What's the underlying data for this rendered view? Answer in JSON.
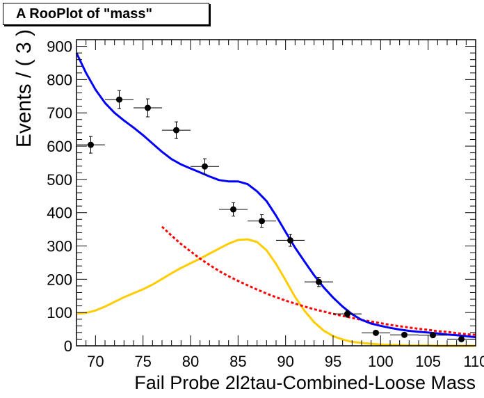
{
  "chart_data": {
    "type": "scatter",
    "title": "A RooPlot of \"mass\"",
    "xlabel": "Fail Probe 2l2tau-Combined-Loose    Mass",
    "ylabel": "Events / ( 3 )",
    "xlim": [
      68,
      110
    ],
    "ylim": [
      0,
      920
    ],
    "xticks": [
      70,
      75,
      80,
      85,
      90,
      95,
      100,
      105,
      110
    ],
    "yticks": [
      0,
      100,
      200,
      300,
      400,
      500,
      600,
      700,
      800,
      900
    ],
    "grid": false,
    "legend": "none",
    "colors": {
      "data": "#000000",
      "total_fit": "#0000ff",
      "signal": "#ffcc00",
      "background": "#ff0000"
    },
    "data_points": {
      "x": [
        69.5,
        72.5,
        75.5,
        78.5,
        81.5,
        84.5,
        87.5,
        90.5,
        93.5,
        96.5,
        99.5,
        102.5,
        105.5,
        108.5
      ],
      "y": [
        604,
        740,
        715,
        648,
        539,
        410,
        375,
        317,
        192,
        96,
        39,
        33,
        32,
        20
      ],
      "x_err": 1.5,
      "y_err": [
        25,
        27,
        27,
        25,
        23,
        20,
        19,
        18,
        14,
        10,
        6,
        6,
        6,
        4.5
      ]
    },
    "series": [
      {
        "style": "line",
        "x": [
          68,
          69,
          70,
          71,
          72,
          73,
          74,
          75,
          76,
          77,
          78,
          79,
          80,
          81,
          82,
          83,
          84,
          85,
          86,
          87,
          88,
          89,
          90,
          91,
          92,
          93,
          94,
          95,
          96,
          97,
          98,
          99,
          100,
          101,
          102,
          103,
          104,
          105,
          106,
          107,
          108,
          109,
          110
        ],
        "y": [
          880,
          820,
          770,
          730,
          700,
          677,
          656,
          633,
          608,
          583,
          561,
          545,
          533,
          521,
          509,
          498,
          494,
          494,
          486,
          464,
          435,
          391,
          342,
          295,
          253,
          212,
          176,
          145,
          118,
          95,
          78,
          67,
          60,
          54,
          49,
          45,
          42,
          40,
          37,
          34,
          32,
          29,
          26
        ]
      },
      {
        "style": "line",
        "x": [
          68,
          69,
          70,
          71,
          72,
          73,
          74,
          75,
          76,
          77,
          78,
          79,
          80,
          81,
          82,
          83,
          84,
          85,
          86,
          87,
          88,
          89,
          90,
          91,
          92,
          93,
          94,
          95,
          96,
          97,
          98,
          99,
          100,
          101,
          102,
          103,
          104,
          105,
          106,
          107,
          108,
          109,
          110
        ],
        "y": [
          97,
          99,
          106,
          118,
          132,
          146,
          158,
          170,
          184,
          201,
          218,
          234,
          248,
          262,
          277,
          292,
          307,
          318,
          320,
          312,
          287,
          246,
          197,
          147,
          105,
          71,
          46,
          29,
          19,
          12,
          9,
          6,
          4,
          3,
          2,
          1,
          1,
          1,
          0,
          0,
          0,
          0,
          0
        ]
      },
      {
        "style": "dashed",
        "x": [
          77,
          78,
          79,
          80,
          81,
          82,
          83,
          84,
          85,
          86,
          87,
          88,
          89,
          90,
          91,
          92,
          93,
          94,
          95,
          96,
          97,
          98,
          99,
          100,
          101,
          102,
          103,
          104,
          105,
          106,
          107,
          108,
          109,
          110
        ],
        "y": [
          358,
          331,
          306,
          284,
          262,
          243,
          225,
          209,
          195,
          182,
          169,
          157,
          146,
          136,
          127,
          118,
          110,
          103,
          96,
          90,
          84,
          78,
          73,
          68,
          63,
          59,
          55,
          51,
          48,
          44,
          42,
          38,
          35,
          33
        ]
      }
    ]
  }
}
